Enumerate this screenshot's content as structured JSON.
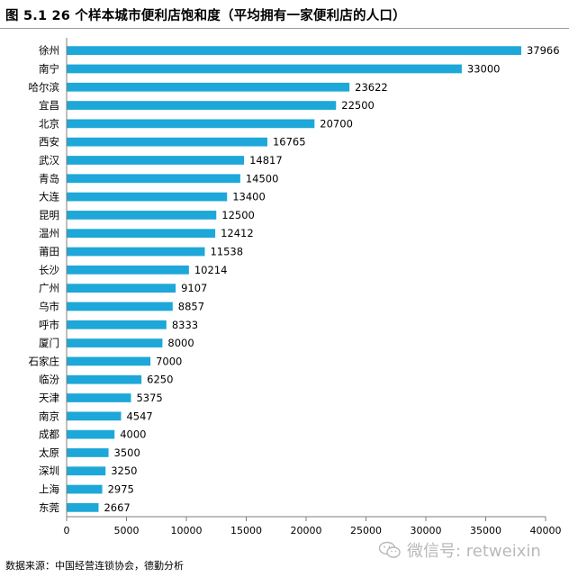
{
  "title": "图 5.1 26 个样本城市便利店饱和度（平均拥有一家便利店的人口）",
  "source": "数据来源：中国经营连锁协会，德勤分析",
  "watermark": "微信号: retweixin",
  "colors": {
    "bar": "#1ea7d9",
    "axis": "#7f7f7f"
  },
  "chart_data": {
    "type": "bar",
    "orientation": "horizontal",
    "categories": [
      "徐州",
      "南宁",
      "哈尔滨",
      "宜昌",
      "北京",
      "西安",
      "武汉",
      "青岛",
      "大连",
      "昆明",
      "温州",
      "莆田",
      "长沙",
      "广州",
      "乌市",
      "呼市",
      "厦门",
      "石家庄",
      "临汾",
      "天津",
      "南京",
      "成都",
      "太原",
      "深圳",
      "上海",
      "东莞"
    ],
    "values": [
      37966,
      33000,
      23622,
      22500,
      20700,
      16765,
      14817,
      14500,
      13400,
      12500,
      12412,
      11538,
      10214,
      9107,
      8857,
      8333,
      8000,
      7000,
      6250,
      5375,
      4547,
      4000,
      3500,
      3250,
      2975,
      2667
    ],
    "xlim": [
      0,
      40000
    ],
    "xticks": [
      0,
      5000,
      10000,
      15000,
      20000,
      25000,
      30000,
      35000,
      40000
    ],
    "grid": false,
    "legend": false
  }
}
